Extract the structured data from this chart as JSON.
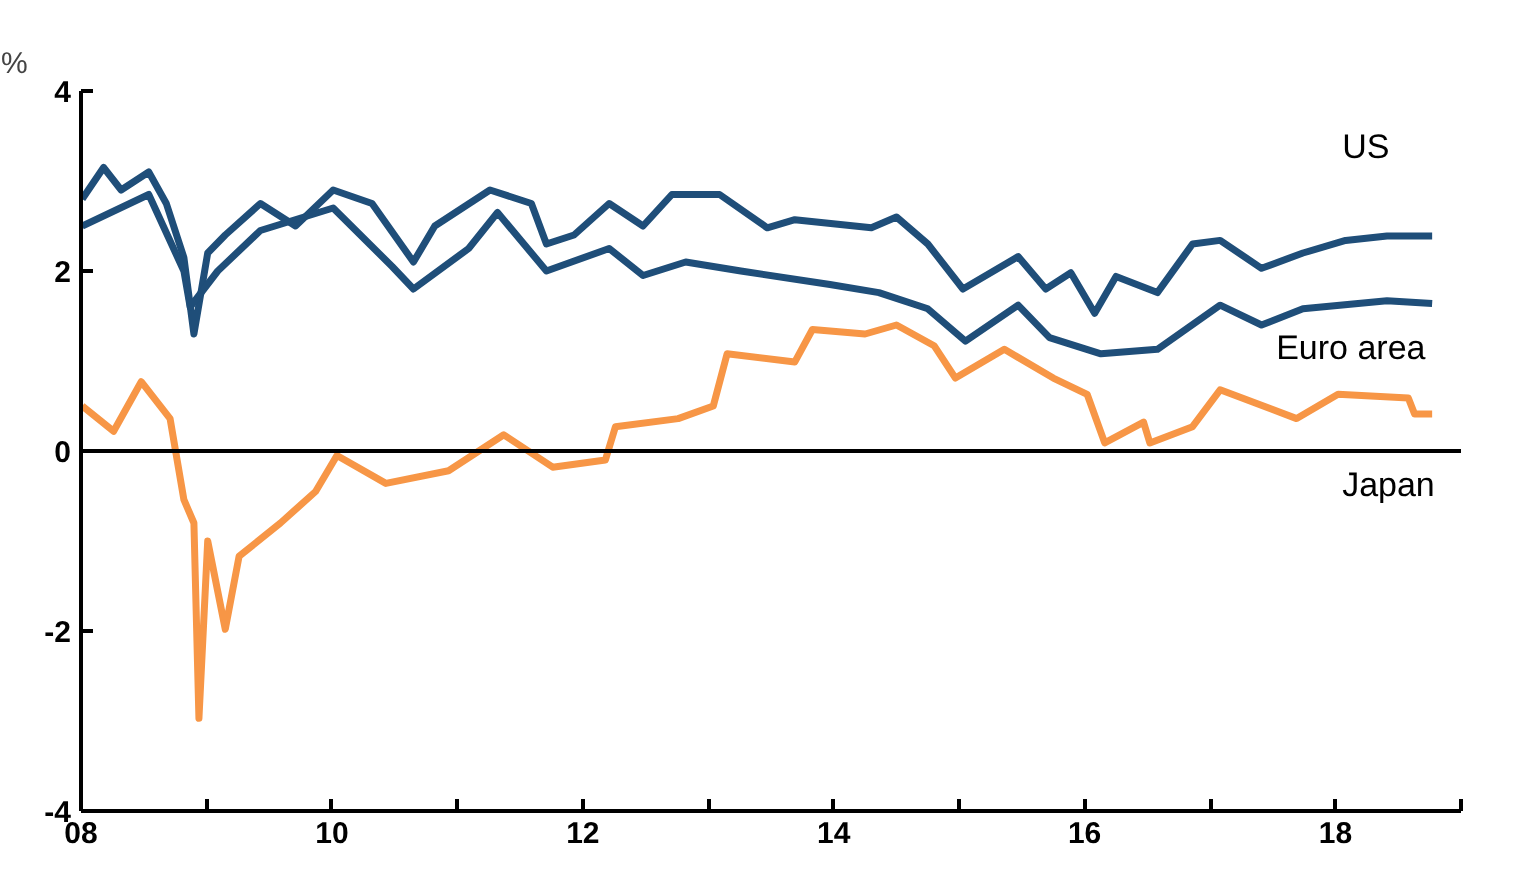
{
  "chart_data": {
    "type": "line",
    "ylabel": "%",
    "xlim": [
      2008,
      2019
    ],
    "ylim": [
      -4,
      4
    ],
    "xticks": [
      {
        "value": 2008,
        "label": "08"
      },
      {
        "value": 2009,
        "label": null
      },
      {
        "value": 2010,
        "label": "10"
      },
      {
        "value": 2011,
        "label": null
      },
      {
        "value": 2012,
        "label": "12"
      },
      {
        "value": 2013,
        "label": null
      },
      {
        "value": 2014,
        "label": "14"
      },
      {
        "value": 2015,
        "label": null
      },
      {
        "value": 2016,
        "label": "16"
      },
      {
        "value": 2017,
        "label": null
      },
      {
        "value": 2018,
        "label": "18"
      },
      {
        "value": 2019,
        "label": null
      }
    ],
    "yticks": [
      -4,
      -2,
      0,
      2,
      4
    ],
    "grid": false,
    "ref_lines": [
      {
        "axis": "y",
        "value": 0,
        "color": "#000000"
      }
    ],
    "series": [
      {
        "name": "US",
        "color": "#1f4e79",
        "x": [
          2008.01,
          2008.18,
          2008.32,
          2008.54,
          2008.68,
          2008.82,
          2008.9,
          2009.01,
          2009.15,
          2009.43,
          2009.71,
          2010.01,
          2010.32,
          2010.65,
          2010.82,
          2011.26,
          2011.59,
          2011.71,
          2011.93,
          2012.21,
          2012.48,
          2012.71,
          2013.09,
          2013.47,
          2013.69,
          2014.3,
          2014.5,
          2014.75,
          2015.03,
          2015.47,
          2015.69,
          2015.89,
          2016.08,
          2016.25,
          2016.58,
          2016.86,
          2017.08,
          2017.41,
          2017.74,
          2018.08,
          2018.41,
          2018.77
        ],
        "values": [
          2.8,
          3.15,
          2.9,
          3.1,
          2.75,
          2.15,
          1.3,
          2.2,
          2.4,
          2.75,
          2.5,
          2.9,
          2.75,
          2.1,
          2.5,
          2.9,
          2.75,
          2.3,
          2.4,
          2.75,
          2.5,
          2.85,
          2.85,
          2.48,
          2.57,
          2.48,
          2.6,
          2.3,
          1.8,
          2.16,
          1.8,
          1.98,
          1.53,
          1.94,
          1.76,
          2.3,
          2.34,
          2.03,
          2.2,
          2.34,
          2.39,
          2.39
        ]
      },
      {
        "name": "Euro area",
        "color": "#1f4e79",
        "x": [
          2008.01,
          2008.54,
          2008.82,
          2008.87,
          2009.09,
          2009.43,
          2010.01,
          2010.48,
          2010.65,
          2011.09,
          2011.32,
          2011.71,
          2012.21,
          2012.48,
          2012.82,
          2013.26,
          2013.97,
          2014.36,
          2014.75,
          2015.05,
          2015.47,
          2015.72,
          2016.13,
          2016.58,
          2017.08,
          2017.41,
          2017.74,
          2018.41,
          2018.77
        ],
        "values": [
          2.5,
          2.85,
          2.0,
          1.6,
          2.0,
          2.45,
          2.7,
          2.05,
          1.8,
          2.25,
          2.65,
          2.0,
          2.25,
          1.95,
          2.1,
          2.0,
          1.85,
          1.76,
          1.58,
          1.22,
          1.62,
          1.26,
          1.08,
          1.13,
          1.62,
          1.4,
          1.58,
          1.67,
          1.64
        ]
      },
      {
        "name": "Japan",
        "color": "#f79646",
        "x": [
          2008.01,
          2008.26,
          2008.48,
          2008.71,
          2008.82,
          2008.9,
          2008.94,
          2009.01,
          2009.15,
          2009.26,
          2009.59,
          2009.87,
          2010.04,
          2010.43,
          2010.93,
          2011.37,
          2011.76,
          2012.18,
          2012.26,
          2012.76,
          2013.04,
          2013.15,
          2013.69,
          2013.83,
          2014.25,
          2014.5,
          2014.8,
          2014.97,
          2015.36,
          2015.75,
          2016.02,
          2016.16,
          2016.47,
          2016.52,
          2016.86,
          2017.08,
          2017.69,
          2018.02,
          2018.58,
          2018.63,
          2018.77
        ],
        "values": [
          0.5,
          0.22,
          0.77,
          0.36,
          -0.54,
          -0.8,
          -2.97,
          -1.0,
          -1.98,
          -1.17,
          -0.8,
          -0.45,
          -0.05,
          -0.36,
          -0.22,
          0.18,
          -0.18,
          -0.1,
          0.27,
          0.36,
          0.5,
          1.08,
          0.99,
          1.35,
          1.3,
          1.4,
          1.17,
          0.81,
          1.13,
          0.81,
          0.63,
          0.09,
          0.32,
          0.09,
          0.27,
          0.68,
          0.36,
          0.63,
          0.59,
          0.41,
          0.41
        ]
      }
    ]
  }
}
